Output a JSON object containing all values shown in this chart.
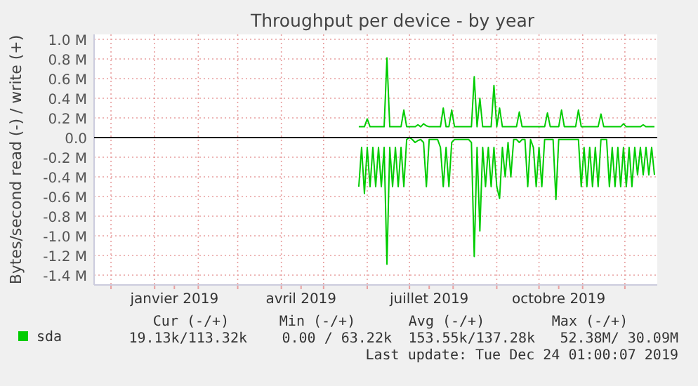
{
  "chart_data": {
    "type": "line",
    "title": "Throughput per device - by year",
    "ylabel": "Bytes/second read (-) / write (+)",
    "xlim": [
      "2018-11-19",
      "2019-12-24"
    ],
    "xticks": [
      {
        "value": "2018-12-01",
        "label": null
      },
      {
        "value": "2019-01-01",
        "label": null
      },
      {
        "value": "2019-01-15",
        "label": "janvier 2019"
      },
      {
        "value": "2019-02-01",
        "label": null
      },
      {
        "value": "2019-03-01",
        "label": null
      },
      {
        "value": "2019-04-01",
        "label": null
      },
      {
        "value": "2019-04-15",
        "label": "avril 2019"
      },
      {
        "value": "2019-05-01",
        "label": null
      },
      {
        "value": "2019-06-01",
        "label": null
      },
      {
        "value": "2019-07-01",
        "label": null
      },
      {
        "value": "2019-07-15",
        "label": "juillet 2019"
      },
      {
        "value": "2019-08-01",
        "label": null
      },
      {
        "value": "2019-09-01",
        "label": null
      },
      {
        "value": "2019-10-01",
        "label": null
      },
      {
        "value": "2019-10-15",
        "label": "octobre 2019"
      },
      {
        "value": "2019-11-01",
        "label": null
      },
      {
        "value": "2019-12-01",
        "label": null
      }
    ],
    "ylim": [
      -1.5,
      1.05
    ],
    "yticks": [
      {
        "value": 1,
        "label": "1.0 M"
      },
      {
        "value": 0.8,
        "label": "0.8 M"
      },
      {
        "value": 0.6,
        "label": "0.6 M"
      },
      {
        "value": 0.4,
        "label": "0.4 M"
      },
      {
        "value": 0.2,
        "label": "0.2 M"
      },
      {
        "value": 0,
        "label": "0.0"
      },
      {
        "value": -0.2,
        "label": "-0.2 M"
      },
      {
        "value": -0.4,
        "label": "-0.4 M"
      },
      {
        "value": -0.6,
        "label": "-0.6 M"
      },
      {
        "value": -0.8,
        "label": "-0.8 M"
      },
      {
        "value": -1,
        "label": "-1.0 M"
      },
      {
        "value": -1.2,
        "label": "-1.2 M"
      },
      {
        "value": -1.4,
        "label": "-1.4 M"
      }
    ],
    "grid": true,
    "legend": "bottom left",
    "x": [
      "2019-05-26",
      "2019-05-28",
      "2019-05-30",
      "2019-06-01",
      "2019-06-03",
      "2019-06-05",
      "2019-06-07",
      "2019-06-09",
      "2019-06-11",
      "2019-06-13",
      "2019-06-15",
      "2019-06-17",
      "2019-06-19",
      "2019-06-21",
      "2019-06-23",
      "2019-06-25",
      "2019-06-27",
      "2019-06-29",
      "2019-07-01",
      "2019-07-03",
      "2019-07-05",
      "2019-07-07",
      "2019-07-09",
      "2019-07-11",
      "2019-07-13",
      "2019-07-15",
      "2019-07-17",
      "2019-07-19",
      "2019-07-21",
      "2019-07-23",
      "2019-07-25",
      "2019-07-27",
      "2019-07-29",
      "2019-07-31",
      "2019-08-02",
      "2019-08-04",
      "2019-08-06",
      "2019-08-08",
      "2019-08-10",
      "2019-08-12",
      "2019-08-14",
      "2019-08-16",
      "2019-08-18",
      "2019-08-20",
      "2019-08-22",
      "2019-08-24",
      "2019-08-26",
      "2019-08-28",
      "2019-08-30",
      "2019-09-01",
      "2019-09-03",
      "2019-09-05",
      "2019-09-07",
      "2019-09-09",
      "2019-09-11",
      "2019-09-13",
      "2019-09-15",
      "2019-09-17",
      "2019-09-19",
      "2019-09-21",
      "2019-09-23",
      "2019-09-25",
      "2019-09-27",
      "2019-09-29",
      "2019-10-01",
      "2019-10-03",
      "2019-10-05",
      "2019-10-07",
      "2019-10-09",
      "2019-10-11",
      "2019-10-13",
      "2019-10-15",
      "2019-10-17",
      "2019-10-19",
      "2019-10-21",
      "2019-10-23",
      "2019-10-25",
      "2019-10-27",
      "2019-10-29",
      "2019-10-31",
      "2019-11-02",
      "2019-11-04",
      "2019-11-06",
      "2019-11-08",
      "2019-11-10",
      "2019-11-12",
      "2019-11-14",
      "2019-11-16",
      "2019-11-18",
      "2019-11-20",
      "2019-11-22",
      "2019-11-24",
      "2019-11-26",
      "2019-11-28",
      "2019-11-30",
      "2019-12-02",
      "2019-12-04",
      "2019-12-06",
      "2019-12-08",
      "2019-12-10",
      "2019-12-12",
      "2019-12-14",
      "2019-12-16",
      "2019-12-18",
      "2019-12-20",
      "2019-12-22"
    ],
    "series": [
      {
        "name": "sda",
        "color": "#00cc00",
        "values": [
          0.11,
          0.11,
          0.11,
          0.19,
          0.11,
          0.11,
          0.11,
          0.11,
          0.11,
          0.11,
          0.81,
          0.11,
          0.11,
          0.11,
          0.11,
          0.11,
          0.28,
          0.11,
          0.11,
          0.11,
          0.11,
          0.13,
          0.11,
          0.14,
          0.12,
          0.11,
          0.11,
          0.11,
          0.11,
          0.11,
          0.3,
          0.11,
          0.11,
          0.28,
          0.11,
          0.11,
          0.11,
          0.11,
          0.11,
          0.11,
          0.11,
          0.62,
          0.11,
          0.4,
          0.11,
          0.11,
          0.11,
          0.11,
          0.53,
          0.11,
          0.3,
          0.11,
          0.11,
          0.11,
          0.11,
          0.11,
          0.11,
          0.26,
          0.11,
          0.11,
          0.11,
          0.11,
          0.11,
          0.11,
          0.11,
          0.11,
          0.11,
          0.25,
          0.11,
          0.11,
          0.11,
          0.11,
          0.28,
          0.11,
          0.11,
          0.11,
          0.11,
          0.11,
          0.28,
          0.11,
          0.11,
          0.11,
          0.11,
          0.11,
          0.11,
          0.11,
          0.24,
          0.11,
          0.11,
          0.11,
          0.11,
          0.11,
          0.11,
          0.11,
          0.14,
          0.11,
          0.11,
          0.11,
          0.11,
          0.11,
          0.11,
          0.13,
          0.11,
          0.11,
          0.11,
          0.11
        ]
      },
      {
        "color": "#00cc00",
        "values": [
          -0.5,
          -0.1,
          -0.57,
          -0.1,
          -0.5,
          -0.1,
          -0.5,
          -0.1,
          -0.5,
          -0.1,
          -1.29,
          -0.1,
          -0.5,
          -0.1,
          -0.5,
          -0.1,
          -0.5,
          -0.02,
          0,
          -0.02,
          -0.05,
          -0.03,
          -0.02,
          -0.05,
          -0.5,
          -0.02,
          -0.02,
          -0.02,
          -0.02,
          -0.1,
          -0.5,
          -0.1,
          -0.5,
          -0.05,
          -0.02,
          -0.02,
          -0.02,
          -0.02,
          -0.02,
          -0.02,
          -0.05,
          -1.21,
          -0.1,
          -0.95,
          -0.1,
          -0.5,
          -0.1,
          -0.5,
          -0.1,
          -0.5,
          -0.62,
          -0.1,
          -0.4,
          -0.05,
          -0.4,
          -0.02,
          -0.02,
          -0.05,
          -0.02,
          -0.02,
          -0.5,
          -0.02,
          -0.1,
          -0.5,
          -0.1,
          -0.5,
          -0.02,
          -0.02,
          -0.02,
          -0.02,
          -0.63,
          -0.02,
          -0.02,
          -0.02,
          -0.02,
          -0.02,
          -0.02,
          -0.02,
          -0.02,
          -0.5,
          -0.1,
          -0.5,
          -0.1,
          -0.5,
          -0.1,
          -0.5,
          -0.02,
          -0.02,
          -0.02,
          -0.5,
          -0.1,
          -0.5,
          -0.1,
          -0.5,
          -0.1,
          -0.5,
          -0.1,
          -0.5,
          -0.1,
          -0.38,
          -0.1,
          -0.38,
          -0.1,
          -0.38,
          -0.1,
          -0.38
        ]
      }
    ],
    "ref_lines": [
      {
        "axis": "y",
        "value": 0,
        "color": "#000000"
      }
    ],
    "annotations": [
      "Cur (-/+)",
      "Min (-/+)",
      "Avg (-/+)",
      "Max (-/+)",
      "19.13k/113.32k",
      "0.00 / 63.22k",
      "153.55k/137.28k",
      "52.38M/ 30.09M",
      "Last update: Tue Dec 24 01:00:07 2019"
    ]
  }
}
